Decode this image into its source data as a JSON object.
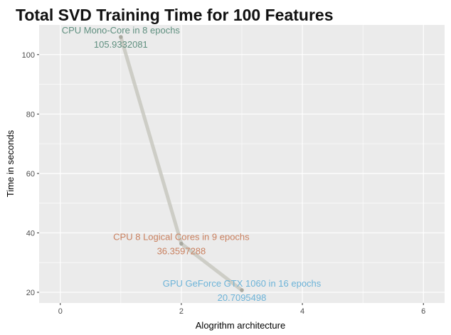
{
  "chart_data": {
    "type": "line",
    "title": "Total SVD Training Time for 100 Features",
    "xlabel": "Alogrithm architecture",
    "ylabel": "Time in seconds",
    "xlim": [
      -0.35,
      6.35
    ],
    "ylim": [
      16.4,
      110.0
    ],
    "xticks": [
      0,
      2,
      4,
      6
    ],
    "yticks": [
      20,
      40,
      60,
      80,
      100
    ],
    "grid": true,
    "background": "#ebebeb",
    "line_color": "#c8c8c0",
    "point_color": "#a9a9a0",
    "points": [
      {
        "x": 1,
        "y": 105.9332081,
        "label": "CPU Mono-Core in 8 epochs",
        "value_label": "105.9332081",
        "color": "#5f8f7f"
      },
      {
        "x": 2,
        "y": 36.3597288,
        "label": "CPU 8 Logical Cores in 9 epochs",
        "value_label": "36.3597288",
        "color": "#c9805f"
      },
      {
        "x": 3,
        "y": 20.7095498,
        "label": "GPU GeForce GTX 1060 in 16 epochs",
        "value_label": "20.7095498",
        "color": "#6cb3d8"
      }
    ]
  }
}
